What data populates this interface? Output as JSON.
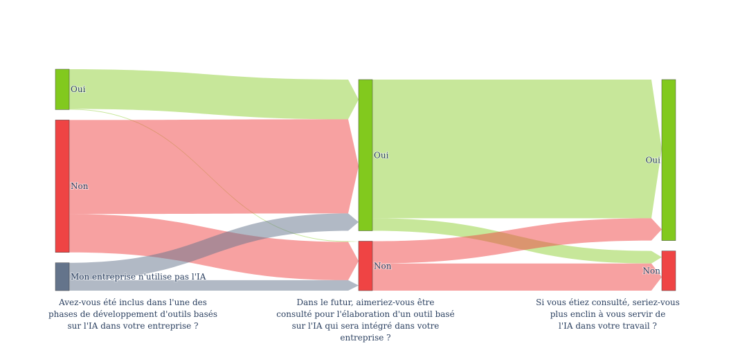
{
  "chart_data": {
    "type": "sankey",
    "columns": [
      {
        "question_lines": [
          "Avez-vous été inclus dans l'une des",
          "phases de développement d'outils basés",
          "sur l'IA dans votre entreprise ?"
        ]
      },
      {
        "question_lines": [
          "Dans le futur, aimeriez-vous être",
          "consulté pour l'élaboration d'un outil basé",
          "sur l'IA qui sera intégré dans votre entreprise ?"
        ]
      },
      {
        "question_lines": [
          "Si vous étiez consulté, seriez-vous",
          "plus enclin à vous servir de",
          "l'IA dans votre travail ?"
        ]
      }
    ],
    "nodes": [
      {
        "id": "q1_oui",
        "column": 0,
        "label": "Oui",
        "color": "#82c91e"
      },
      {
        "id": "q1_non",
        "column": 0,
        "label": "Non",
        "color": "#ef4444"
      },
      {
        "id": "q1_none",
        "column": 0,
        "label": "Mon entreprise n'utilise pas l'IA",
        "color": "#64748b"
      },
      {
        "id": "q2_oui",
        "column": 1,
        "label": "Oui",
        "color": "#82c91e"
      },
      {
        "id": "q2_non",
        "column": 1,
        "label": "Non",
        "color": "#ef4444"
      },
      {
        "id": "q3_oui",
        "column": 2,
        "label": "Oui",
        "color": "#82c91e"
      },
      {
        "id": "q3_non",
        "column": 2,
        "label": "Non",
        "color": "#ef4444"
      }
    ],
    "links": [
      {
        "source": "q1_oui",
        "target": "q2_oui",
        "value": 57,
        "color": "rgba(130,201,30,0.45)"
      },
      {
        "source": "q1_oui",
        "target": "q2_non",
        "value": 1,
        "color": "rgba(130,201,30,0.45)"
      },
      {
        "source": "q1_non",
        "target": "q2_oui",
        "value": 135,
        "color": "rgba(239,68,68,0.5)"
      },
      {
        "source": "q1_non",
        "target": "q2_non",
        "value": 55,
        "color": "rgba(239,68,68,0.5)"
      },
      {
        "source": "q1_none",
        "target": "q2_oui",
        "value": 25,
        "color": "rgba(100,116,139,0.5)"
      },
      {
        "source": "q1_none",
        "target": "q2_non",
        "value": 15,
        "color": "rgba(100,116,139,0.5)"
      },
      {
        "source": "q2_oui",
        "target": "q3_oui",
        "value": 199,
        "color": "rgba(130,201,30,0.45)"
      },
      {
        "source": "q2_oui",
        "target": "q3_non",
        "value": 18,
        "color": "rgba(130,201,30,0.45)"
      },
      {
        "source": "q2_non",
        "target": "q3_oui",
        "value": 32,
        "color": "rgba(239,68,68,0.5)"
      },
      {
        "source": "q2_non",
        "target": "q3_non",
        "value": 39,
        "color": "rgba(239,68,68,0.5)"
      }
    ]
  }
}
